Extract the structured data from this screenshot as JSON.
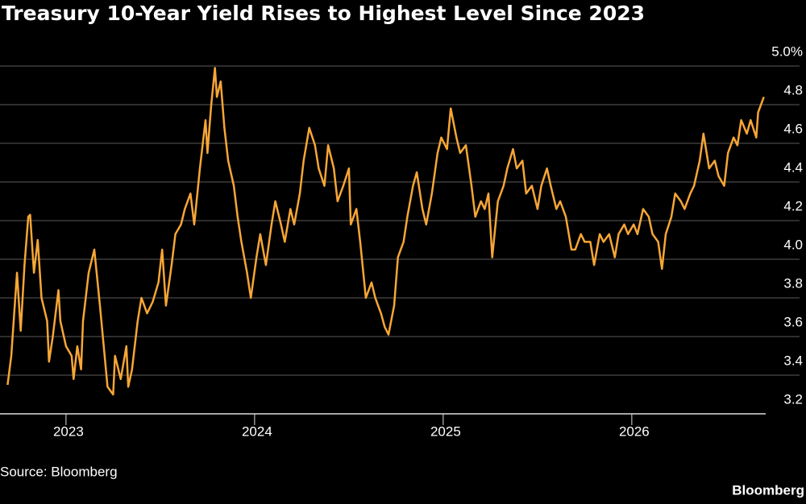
{
  "chart_data": {
    "type": "line",
    "title": "Treasury 10-Year Yield Rises to Highest Level Since 2023",
    "source": "Source: Bloomberg",
    "brand": "Bloomberg",
    "color": "#f7a636",
    "grid": true,
    "xlim": [
      2022.65,
      2026.71
    ],
    "xticks": [
      2023,
      2024,
      2025,
      2026
    ],
    "ylim": [
      3.2,
      5.0
    ],
    "yticks": [
      3.2,
      3.4,
      3.6,
      3.8,
      {
        "value": 4,
        "label": "4.0"
      },
      4.2,
      4.4,
      4.6,
      4.8,
      {
        "value": 5,
        "label": "5.0%"
      }
    ],
    "x": [
      2022.69,
      2022.71,
      2022.74,
      2022.76,
      2022.78,
      2022.8,
      2022.81,
      2022.83,
      2022.85,
      2022.87,
      2022.9,
      2022.91,
      2022.93,
      2022.96,
      2022.97,
      2023.0,
      2023.03,
      2023.04,
      2023.06,
      2023.08,
      2023.09,
      2023.12,
      2023.15,
      2023.18,
      2023.2,
      2023.22,
      2023.25,
      2023.26,
      2023.29,
      2023.32,
      2023.33,
      2023.35,
      2023.38,
      2023.4,
      2023.43,
      2023.46,
      2023.49,
      2023.51,
      2023.53,
      2023.56,
      2023.58,
      2023.61,
      2023.63,
      2023.66,
      2023.68,
      2023.71,
      2023.74,
      2023.75,
      2023.77,
      2023.79,
      2023.8,
      2023.82,
      2023.84,
      2023.86,
      2023.89,
      2023.91,
      2023.93,
      2023.96,
      2023.98,
      2024.01,
      2024.03,
      2024.06,
      2024.09,
      2024.11,
      2024.14,
      2024.16,
      2024.19,
      2024.21,
      2024.24,
      2024.26,
      2024.29,
      2024.32,
      2024.34,
      2024.37,
      2024.39,
      2024.42,
      2024.44,
      2024.47,
      2024.5,
      2024.51,
      2024.54,
      2024.56,
      2024.59,
      2024.62,
      2024.64,
      2024.67,
      2024.69,
      2024.71,
      2024.74,
      2024.76,
      2024.79,
      2024.81,
      2024.84,
      2024.86,
      2024.89,
      2024.91,
      2024.94,
      2024.97,
      2024.99,
      2025.02,
      2025.04,
      2025.07,
      2025.09,
      2025.12,
      2025.15,
      2025.17,
      2025.2,
      2025.22,
      2025.24,
      2025.26,
      2025.29,
      2025.32,
      2025.34,
      2025.37,
      2025.39,
      2025.42,
      2025.44,
      2025.47,
      2025.5,
      2025.52,
      2025.55,
      2025.57,
      2025.6,
      2025.62,
      2025.65,
      2025.68,
      2025.7,
      2025.73,
      2025.75,
      2025.78,
      2025.8,
      2025.83,
      2025.85,
      2025.88,
      2025.91,
      2025.93,
      2025.96,
      2025.98,
      2026.01,
      2026.03,
      2026.06,
      2026.09,
      2026.11,
      2026.14,
      2026.16,
      2026.18,
      2026.21,
      2026.23,
      2026.26,
      2026.28,
      2026.31,
      2026.33,
      2026.36,
      2026.38,
      2026.41,
      2026.44,
      2026.46,
      2026.49,
      2026.51,
      2026.54,
      2026.56,
      2026.58,
      2026.61,
      2026.63,
      2026.66,
      2026.67,
      2026.7
    ],
    "values": [
      3.35,
      3.5,
      3.93,
      3.63,
      3.97,
      4.22,
      4.23,
      3.93,
      4.1,
      3.8,
      3.68,
      3.47,
      3.6,
      3.84,
      3.68,
      3.55,
      3.5,
      3.38,
      3.55,
      3.43,
      3.68,
      3.93,
      4.05,
      3.76,
      3.55,
      3.34,
      3.3,
      3.5,
      3.38,
      3.55,
      3.34,
      3.43,
      3.68,
      3.8,
      3.72,
      3.78,
      3.88,
      4.05,
      3.76,
      3.97,
      4.13,
      4.18,
      4.26,
      4.34,
      4.18,
      4.47,
      4.72,
      4.55,
      4.8,
      4.99,
      4.84,
      4.92,
      4.68,
      4.51,
      4.38,
      4.22,
      4.09,
      3.93,
      3.8,
      4.01,
      4.13,
      3.97,
      4.18,
      4.3,
      4.18,
      4.09,
      4.26,
      4.18,
      4.34,
      4.51,
      4.68,
      4.59,
      4.47,
      4.38,
      4.59,
      4.47,
      4.3,
      4.38,
      4.47,
      4.18,
      4.26,
      4.09,
      3.8,
      3.88,
      3.8,
      3.72,
      3.65,
      3.61,
      3.76,
      4.01,
      4.09,
      4.22,
      4.38,
      4.45,
      4.26,
      4.18,
      4.34,
      4.55,
      4.63,
      4.57,
      4.78,
      4.63,
      4.55,
      4.59,
      4.38,
      4.22,
      4.3,
      4.26,
      4.34,
      4.01,
      4.3,
      4.38,
      4.47,
      4.57,
      4.47,
      4.51,
      4.34,
      4.38,
      4.26,
      4.38,
      4.47,
      4.38,
      4.26,
      4.3,
      4.22,
      4.05,
      4.05,
      4.13,
      4.09,
      4.09,
      3.97,
      4.13,
      4.09,
      4.13,
      4.01,
      4.13,
      4.18,
      4.13,
      4.18,
      4.13,
      4.26,
      4.22,
      4.13,
      4.09,
      3.95,
      4.13,
      4.22,
      4.34,
      4.3,
      4.26,
      4.34,
      4.38,
      4.51,
      4.65,
      4.47,
      4.51,
      4.43,
      4.38,
      4.55,
      4.63,
      4.59,
      4.72,
      4.65,
      4.72,
      4.63,
      4.76,
      4.84
    ]
  }
}
